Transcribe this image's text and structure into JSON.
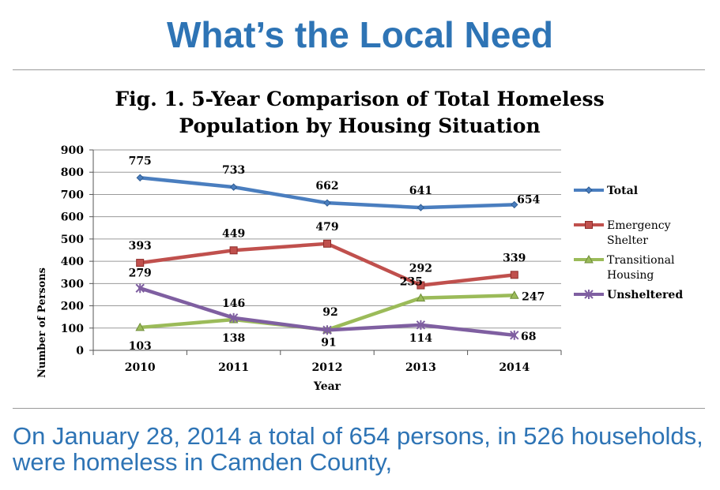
{
  "slide": {
    "title": "What’s the Local Need",
    "footer": "On January 28, 2014 a total of 654 persons, in 526 households, were homeless in Camden County,"
  },
  "chart_data": {
    "type": "line",
    "title_line1": "Fig. 1. 5-Year Comparison of Total Homeless",
    "title_line2": "Population by Housing Situation",
    "xlabel": "Year",
    "ylabel": "Number of Persons",
    "categories": [
      "2010",
      "2011",
      "2012",
      "2013",
      "2014"
    ],
    "ylim": [
      0,
      900
    ],
    "yticks": [
      0,
      100,
      200,
      300,
      400,
      500,
      600,
      700,
      800,
      900
    ],
    "grid": true,
    "legend_position": "right",
    "series": [
      {
        "name": "Total",
        "legend_lines": [
          "Total"
        ],
        "color": "#4a7ebf",
        "marker": "diamond",
        "values": [
          775,
          733,
          662,
          641,
          654
        ],
        "labels": [
          "775",
          "733",
          "662",
          "641",
          "654"
        ]
      },
      {
        "name": "Emergency Shelter",
        "legend_lines": [
          "Emergency",
          "Shelter"
        ],
        "color": "#c0504d",
        "marker": "square",
        "values": [
          393,
          449,
          479,
          292,
          339
        ],
        "labels": [
          "393",
          "449",
          "479",
          "292",
          "339"
        ]
      },
      {
        "name": "Transitional Housing",
        "legend_lines": [
          "Transitional",
          "Housing"
        ],
        "color": "#9bbb59",
        "marker": "triangle",
        "values": [
          103,
          138,
          92,
          235,
          247
        ],
        "labels": [
          "103",
          "138",
          "92",
          "235",
          "247"
        ]
      },
      {
        "name": "Unsheltered",
        "legend_lines": [
          "Unsheltered"
        ],
        "color": "#7f5fa1",
        "marker": "star",
        "values": [
          279,
          146,
          91,
          114,
          68
        ],
        "labels": [
          "279",
          "146",
          "91",
          "114",
          "68"
        ]
      }
    ]
  }
}
